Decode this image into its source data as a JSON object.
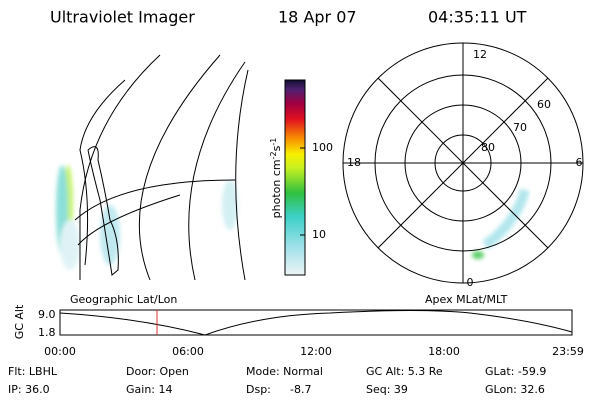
{
  "header": {
    "title": "Ultraviolet Imager",
    "date": "18 Apr 07",
    "time": "04:35:11 UT"
  },
  "colorbar": {
    "label": "photon cm",
    "exp1": "-2",
    "unit2": "s",
    "exp2": "-1",
    "ticks": [
      "100",
      "10"
    ]
  },
  "polar": {
    "mlt_labels": [
      "12",
      "18",
      "6",
      "0"
    ],
    "lat_labels": [
      "60",
      "70",
      "80"
    ]
  },
  "panels": {
    "left_caption": "Geographic Lat/Lon",
    "right_caption": "Apex MLat/MLT"
  },
  "altitude_plot": {
    "ylabel": "GC Alt",
    "yticks": [
      "9.0",
      "1.8"
    ],
    "xticks": [
      "00:00",
      "06:00",
      "12:00",
      "18:00",
      "23:59"
    ]
  },
  "footer": {
    "flt": "Flt: LBHL",
    "ip": "IP: 36.0",
    "door": "Door: Open",
    "gain": "Gain: 14",
    "mode": "Mode: Normal",
    "dsp": "Dsp:",
    "dsp_value": "-8.7",
    "gc_alt": "GC Alt: 5.3 Re",
    "seq": "Seq: 39",
    "glat": "GLat: -59.9",
    "glon": "GLon: 32.6"
  }
}
